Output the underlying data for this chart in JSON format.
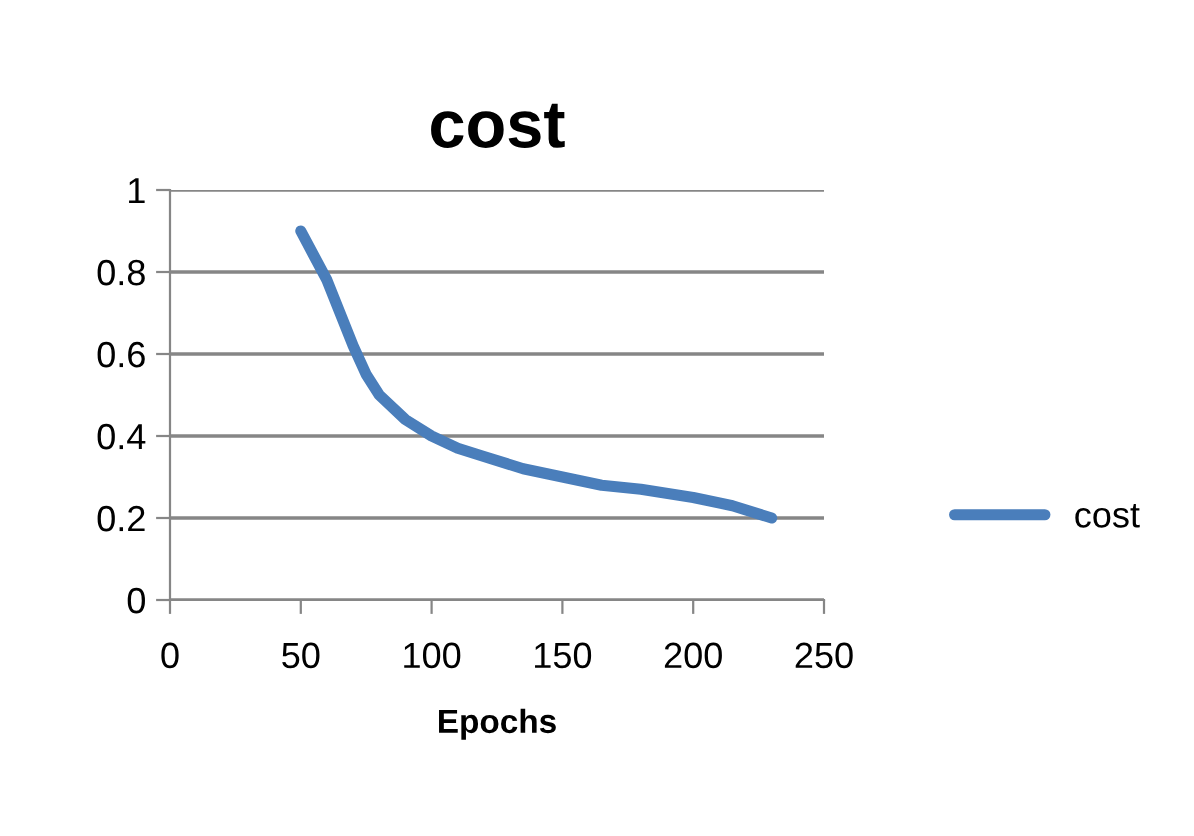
{
  "chart_data": {
    "type": "line",
    "title": "cost",
    "xlabel": "Epochs",
    "series": [
      {
        "name": "cost",
        "color": "#4a7ebb",
        "x": [
          50,
          55,
          60,
          65,
          70,
          75,
          80,
          90,
          100,
          110,
          120,
          135,
          150,
          165,
          180,
          200,
          215,
          230
        ],
        "values": [
          0.9,
          0.84,
          0.78,
          0.7,
          0.62,
          0.55,
          0.5,
          0.44,
          0.4,
          0.37,
          0.35,
          0.32,
          0.3,
          0.28,
          0.27,
          0.25,
          0.23,
          0.2
        ]
      }
    ],
    "xlim": [
      0,
      250
    ],
    "xticks": [
      0,
      50,
      100,
      150,
      200,
      250
    ],
    "ylim": [
      0,
      1
    ],
    "yticks": [
      0,
      0.2,
      0.4,
      0.6,
      0.8,
      1
    ],
    "grid": "y",
    "legend": "right",
    "marker": "none",
    "line_style": "solid"
  }
}
